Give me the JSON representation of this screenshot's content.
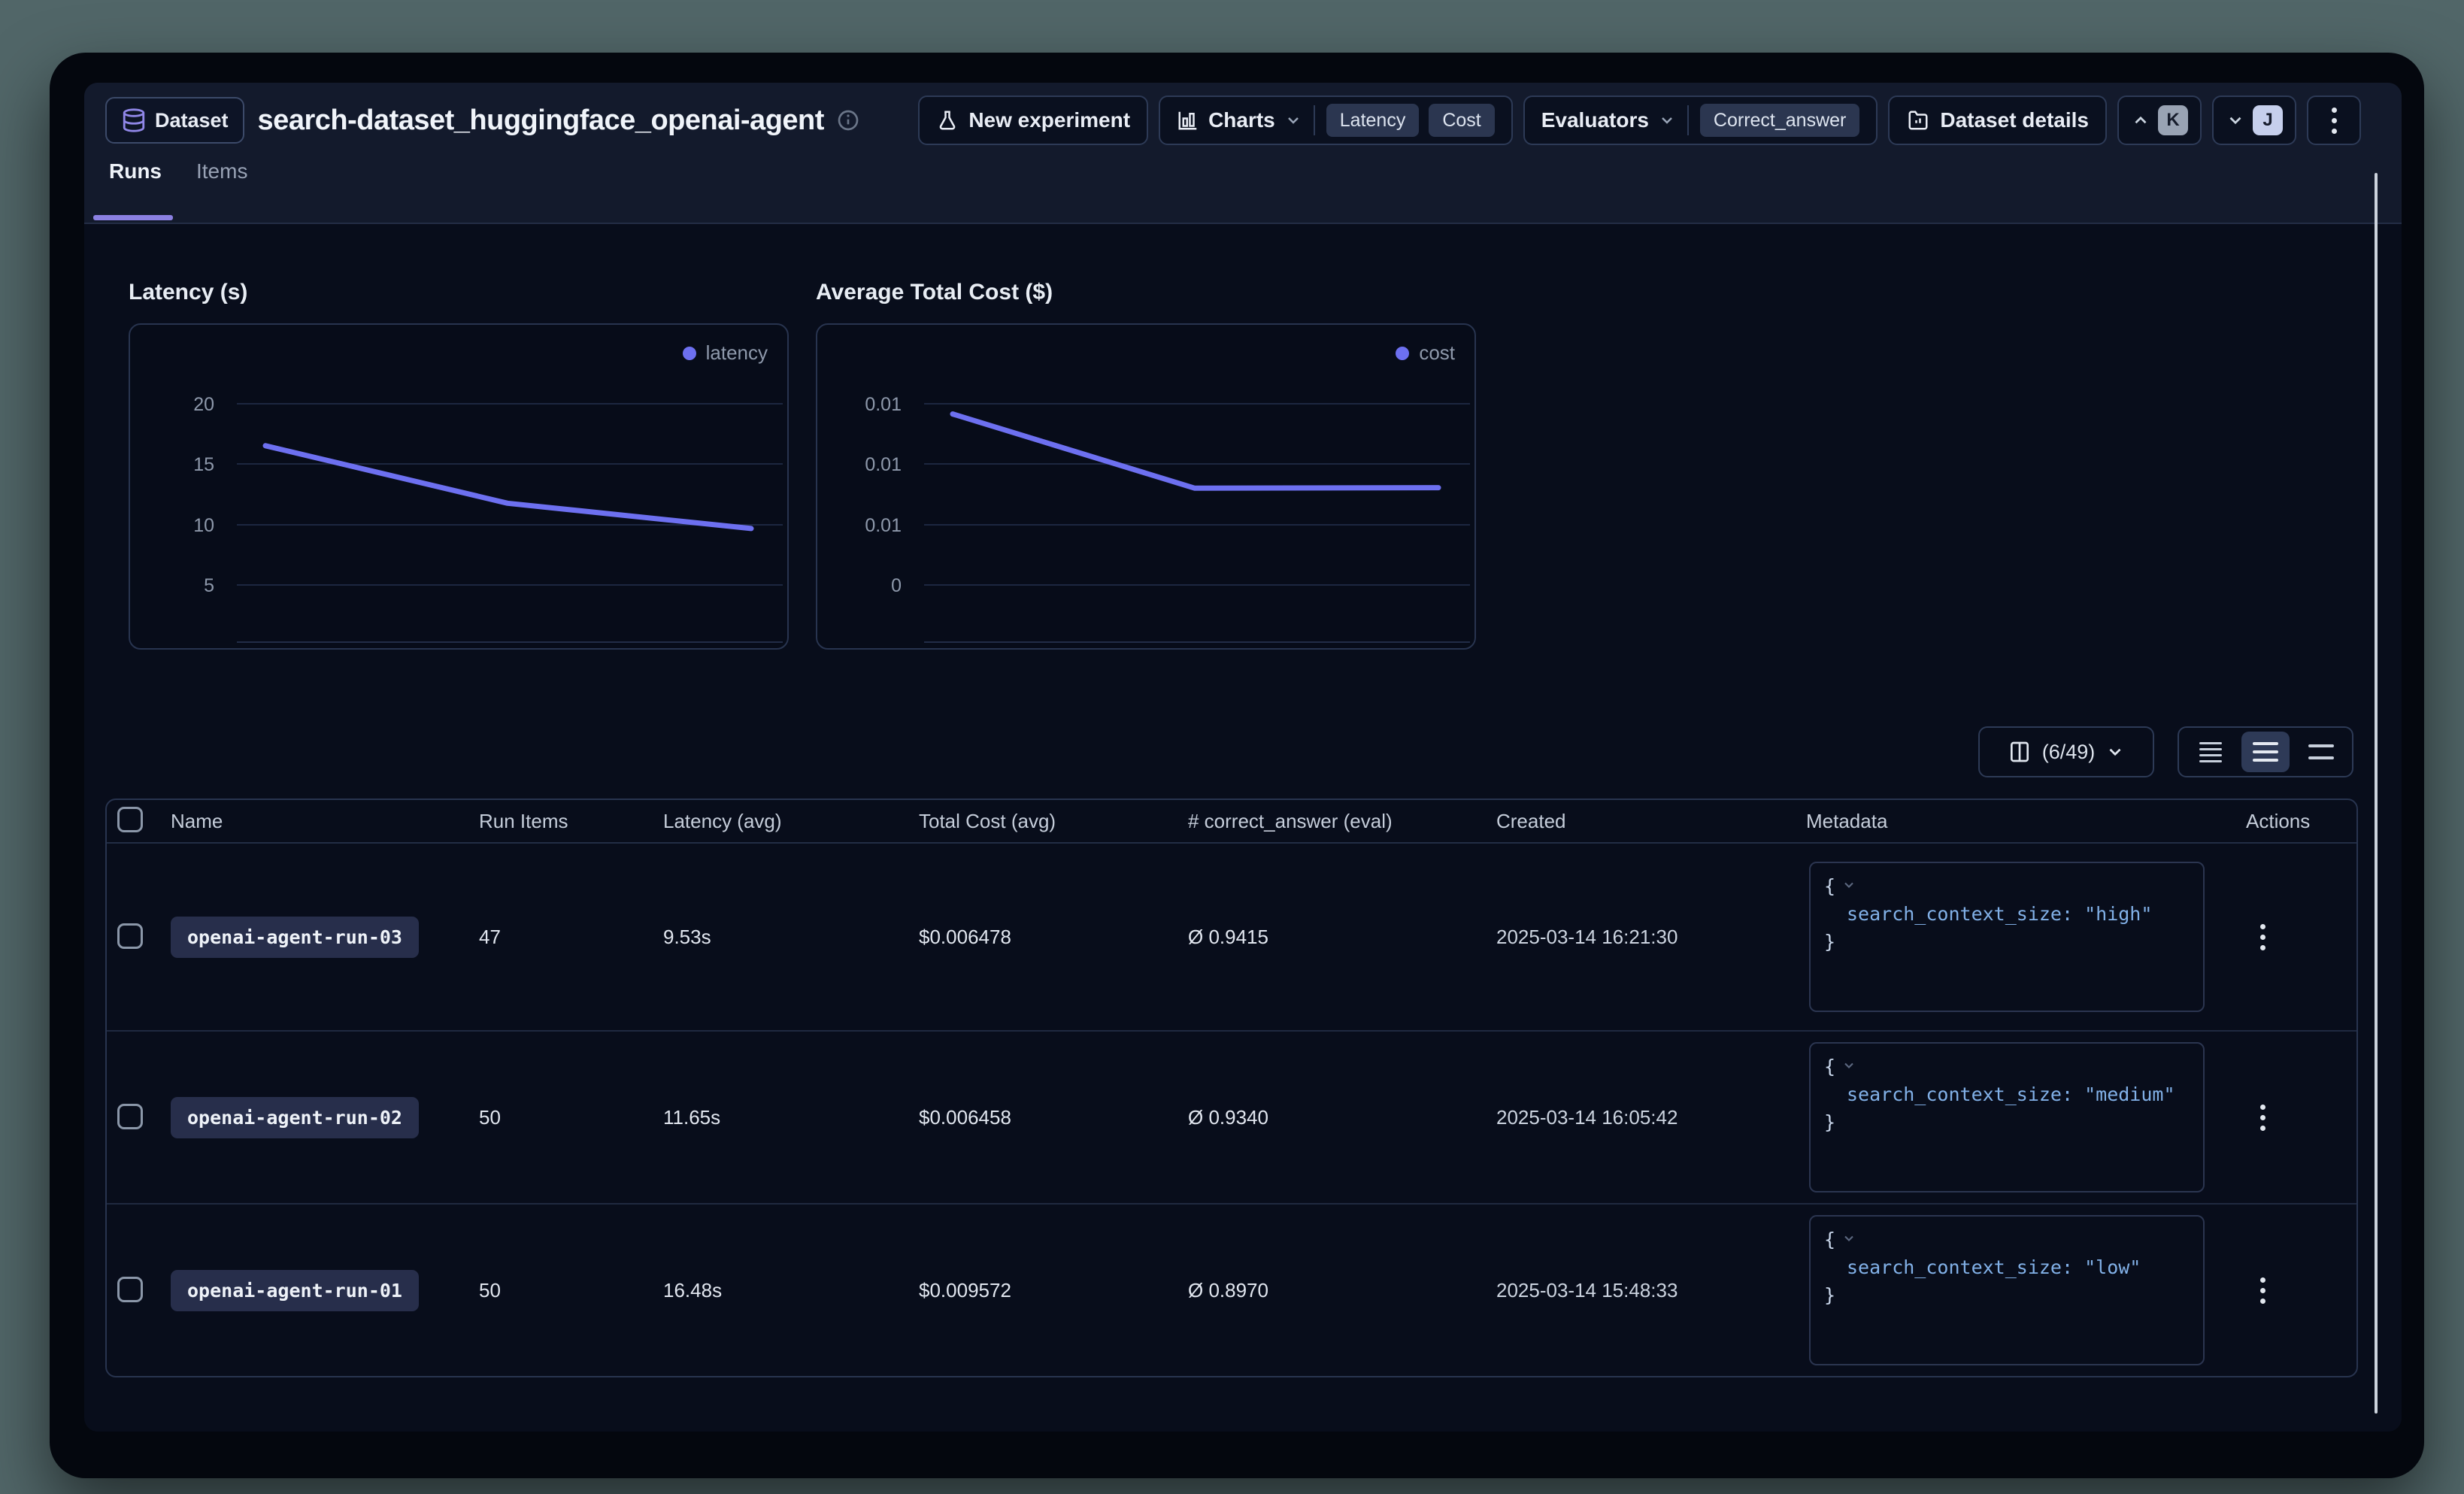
{
  "header": {
    "badge_label": "Dataset",
    "title": "search-dataset_huggingface_openai-agent",
    "new_experiment": "New experiment",
    "charts": "Charts",
    "chips": {
      "latency": "Latency",
      "cost": "Cost",
      "correct_answer": "Correct_answer"
    },
    "evaluators": "Evaluators",
    "dataset_details": "Dataset details",
    "avatar_k": "K",
    "avatar_j": "J",
    "tabs": {
      "runs": "Runs",
      "items": "Items"
    }
  },
  "chart_data": [
    {
      "type": "line",
      "title": "Latency (s)",
      "legend_label": "latency",
      "x_categories": [
        "openai-agent-run-01",
        "openai-agent-run-02",
        "openai-agent-run-03"
      ],
      "series": [
        {
          "name": "latency",
          "values": [
            16.48,
            11.65,
            9.53
          ]
        }
      ],
      "ylabel_ticks": [
        "20",
        "15",
        "10",
        "5"
      ],
      "top_gridline_value": 20,
      "ylim": [
        0,
        25
      ],
      "grid": "on",
      "legend_position": "top-right",
      "line_color": "#6d70f0"
    },
    {
      "type": "line",
      "title": "Average Total Cost ($)",
      "legend_label": "cost",
      "x_categories": [
        "openai-agent-run-01",
        "openai-agent-run-02",
        "openai-agent-run-03"
      ],
      "series": [
        {
          "name": "cost",
          "values": [
            0.009572,
            0.006458,
            0.006478
          ]
        }
      ],
      "ylabel_ticks": [
        "0.01",
        "0.01",
        "0.01",
        "0"
      ],
      "top_gridline_value": 0.01,
      "ylim": [
        0,
        0.0125
      ],
      "grid": "on",
      "legend_position": "top-right",
      "line_color": "#6d70f0"
    }
  ],
  "toolbar": {
    "column_selector": "(6/49)"
  },
  "table": {
    "columns": [
      "Name",
      "Run Items",
      "Latency (avg)",
      "Total Cost (avg)",
      "# correct_answer (eval)",
      "Created",
      "Metadata",
      "Actions"
    ],
    "brace_open": "{",
    "brace_close": "}",
    "rows": [
      {
        "name": "openai-agent-run-03",
        "run_items": "47",
        "latency_avg": "9.53s",
        "total_cost_avg": "$0.006478",
        "correct_answer_eval": "Ø 0.9415",
        "created": "2025-03-14 16:21:30",
        "metadata_key": "search_context_size:",
        "metadata_value": "\"high\""
      },
      {
        "name": "openai-agent-run-02",
        "run_items": "50",
        "latency_avg": "11.65s",
        "total_cost_avg": "$0.006458",
        "correct_answer_eval": "Ø 0.9340",
        "created": "2025-03-14 16:05:42",
        "metadata_key": "search_context_size:",
        "metadata_value": "\"medium\""
      },
      {
        "name": "openai-agent-run-01",
        "run_items": "50",
        "latency_avg": "16.48s",
        "total_cost_avg": "$0.009572",
        "correct_answer_eval": "Ø 0.8970",
        "created": "2025-03-14 15:48:33",
        "metadata_key": "search_context_size:",
        "metadata_value": "\"low\""
      }
    ]
  }
}
